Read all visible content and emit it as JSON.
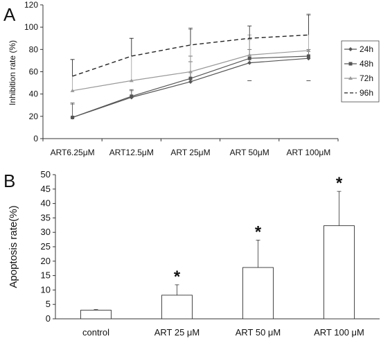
{
  "chart_data": [
    {
      "panel": "A",
      "type": "line",
      "ylabel": "Inhibition rate (%)",
      "ylim": [
        0,
        120
      ],
      "yticks": [
        0,
        20,
        40,
        60,
        80,
        100,
        120
      ],
      "categories": [
        "ART6.25μM",
        "ART12.5μM",
        "ART 25μM",
        "ART 50μM",
        "ART 100μM"
      ],
      "legend_position": "right",
      "series": [
        {
          "name": "24h",
          "values": [
            19,
            37,
            51,
            68,
            72
          ],
          "err_up": [
            12,
            6,
            18,
            12,
            8
          ],
          "style": "solid",
          "marker": "diamond",
          "color": "#555555"
        },
        {
          "name": "48h",
          "values": [
            19,
            38,
            54,
            72,
            74
          ],
          "err_up": [
            13,
            6,
            20,
            17,
            0
          ],
          "style": "solid",
          "marker": "square",
          "color": "#555555"
        },
        {
          "name": "72h",
          "values": [
            43,
            52,
            60,
            75,
            79
          ],
          "err_up": [
            28,
            38,
            38,
            18,
            33
          ],
          "style": "solid",
          "marker": "triangle",
          "color": "#999999"
        },
        {
          "name": "96h",
          "values": [
            56,
            74,
            84,
            90,
            93
          ],
          "err_up": [
            15,
            16,
            15,
            11,
            18
          ],
          "err_down": [
            0,
            0,
            0,
            38,
            41
          ],
          "style": "dashed",
          "marker": "none",
          "color": "#222222"
        }
      ]
    },
    {
      "panel": "B",
      "type": "bar",
      "ylabel": "Apoptosis rate(%)",
      "ylim": [
        0,
        50
      ],
      "yticks": [
        0,
        5,
        10,
        15,
        20,
        25,
        30,
        35,
        40,
        45,
        50
      ],
      "categories": [
        "control",
        "ART 25 μM",
        "ART 50 μM",
        "ART 100 μM"
      ],
      "values": [
        3.0,
        8.2,
        17.8,
        32.3
      ],
      "err_up": [
        0.2,
        3.6,
        9.5,
        11.9
      ],
      "significance": [
        "",
        "*",
        "*",
        "*"
      ]
    }
  ]
}
